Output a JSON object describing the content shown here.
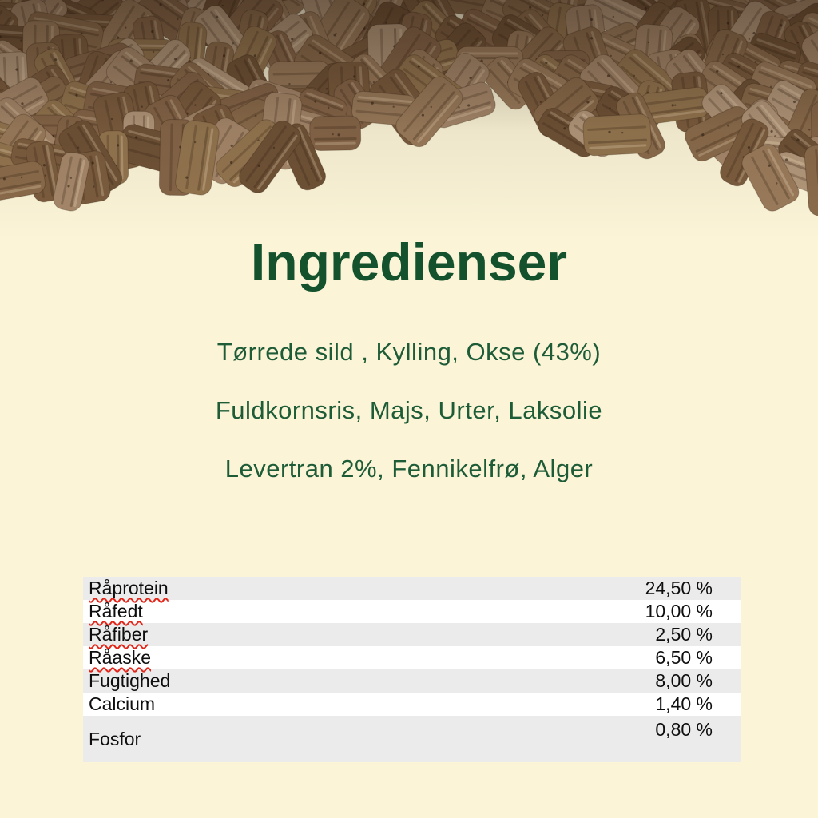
{
  "page": {
    "background_color": "#FBF4D7"
  },
  "hero": {
    "alt": "pile-of-brown-dried-feed-pellets",
    "palette": [
      "#9a7b5b",
      "#8a6b4b",
      "#a5876a",
      "#7b5c3e",
      "#93754f",
      "#856548",
      "#b2977a",
      "#6f5236"
    ],
    "shade_color": "#1A0F08"
  },
  "title": {
    "text": "Ingredienser",
    "color": "#14522E"
  },
  "ingredients": {
    "color": "#1E5C38",
    "lines": [
      "Tørrede sild , Kylling, Okse (43%)",
      "Fuldkornsris, Majs, Urter, Laksolie",
      "Levertran 2%, Fennikelfrø, Alger"
    ]
  },
  "analysis_table": {
    "stripe_color": "#EBEBEB",
    "text_color": "#0E0E0E",
    "spellcheck_color": "#E2261A",
    "rows": [
      {
        "label": "Råprotein",
        "value": "24,50 %",
        "misspelled": true
      },
      {
        "label": "Råfedt",
        "value": "10,00 %",
        "misspelled": true
      },
      {
        "label": "Råfiber",
        "value": "2,50 %",
        "misspelled": true
      },
      {
        "label": "Råaske",
        "value": "6,50 %",
        "misspelled": true
      },
      {
        "label": "Fugtighed",
        "value": "8,00 %",
        "misspelled": false
      },
      {
        "label": "Calcium",
        "value": "1,40 %",
        "misspelled": false
      },
      {
        "label": "Fosfor",
        "value": "0,80 %",
        "misspelled": false
      }
    ]
  }
}
